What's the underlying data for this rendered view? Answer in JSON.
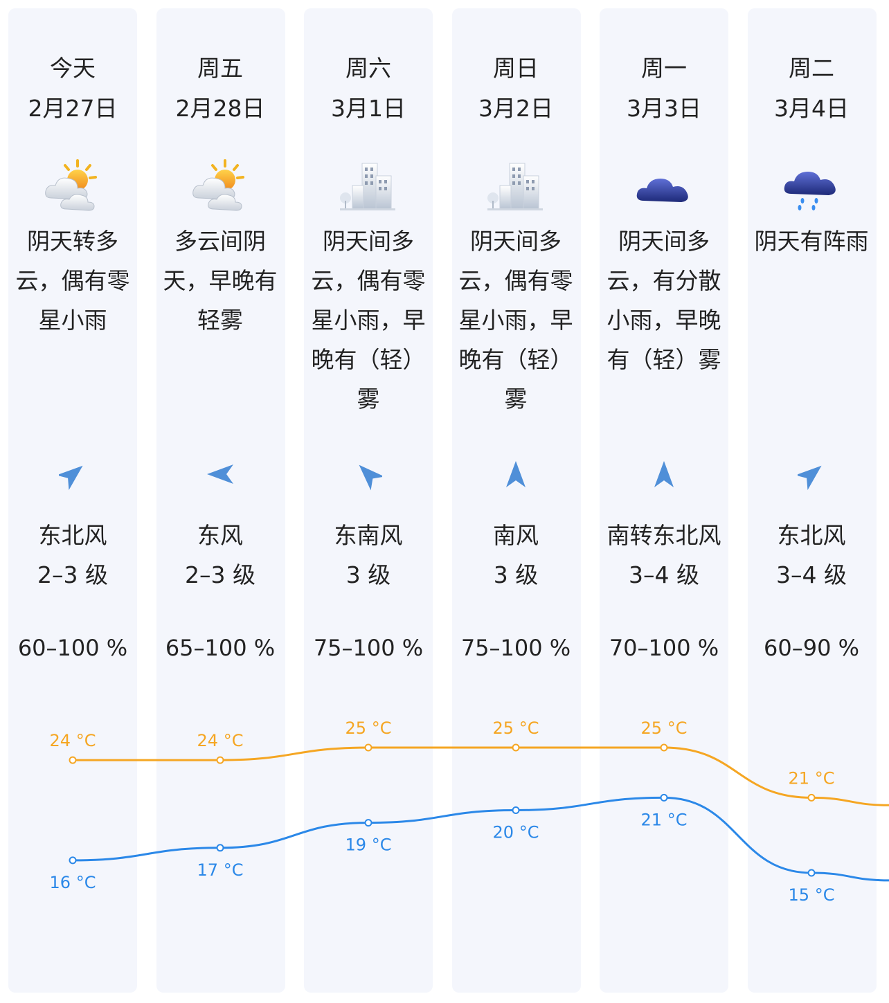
{
  "days": [
    {
      "weekday": "今天",
      "date": "2月27日",
      "icon": "partly-cloudy-sun-icon",
      "desc_lines": [
        "阴天转多",
        "云，偶有零",
        "星小雨"
      ],
      "wind_arrow": "northeast-wind-arrow-icon",
      "wind_dir": "东北风",
      "wind_level": "2–3 级",
      "humidity": "60–100 %",
      "high": "24 °C",
      "low": "16 °C"
    },
    {
      "weekday": "周五",
      "date": "2月28日",
      "icon": "partly-cloudy-sun-icon",
      "desc_lines": [
        "多云间阴",
        "天，早晚有",
        "轻雾"
      ],
      "wind_arrow": "east-wind-arrow-icon",
      "wind_dir": "东风",
      "wind_level": "2–3 级",
      "humidity": "65–100 %",
      "high": "24 °C",
      "low": "17 °C"
    },
    {
      "weekday": "周六",
      "date": "3月1日",
      "icon": "haze-buildings-icon",
      "desc_lines": [
        "阴天间多",
        "云，偶有零",
        "星小雨，早",
        "晚有（轻）",
        "雾"
      ],
      "wind_arrow": "southeast-wind-arrow-icon",
      "wind_dir": "东南风",
      "wind_level": "3 级",
      "humidity": "75–100 %",
      "high": "25 °C",
      "low": "19 °C"
    },
    {
      "weekday": "周日",
      "date": "3月2日",
      "icon": "haze-buildings-icon",
      "desc_lines": [
        "阴天间多",
        "云，偶有零",
        "星小雨，早",
        "晚有（轻）",
        "雾"
      ],
      "wind_arrow": "south-wind-arrow-icon",
      "wind_dir": "南风",
      "wind_level": "3 级",
      "humidity": "75–100 %",
      "high": "25 °C",
      "low": "20 °C"
    },
    {
      "weekday": "周一",
      "date": "3月3日",
      "icon": "overcast-cloud-icon",
      "desc_lines": [
        "阴天间多",
        "云，有分散",
        "小雨，早晚",
        "有（轻）雾"
      ],
      "wind_arrow": "south-wind-arrow-icon",
      "wind_dir": "南转东北风",
      "wind_level": "3–4 级",
      "humidity": "70–100 %",
      "high": "25 °C",
      "low": "21 °C"
    },
    {
      "weekday": "周二",
      "date": "3月4日",
      "icon": "showers-cloud-icon",
      "desc_lines": [
        "阴天有阵雨"
      ],
      "wind_arrow": "northeast-wind-arrow-icon",
      "wind_dir": "东北风",
      "wind_level": "3–4 级",
      "humidity": "60–90 %",
      "high": "21 °C",
      "low": "15 °C"
    }
  ],
  "chart_data": {
    "type": "line",
    "categories": [
      "今天",
      "周五",
      "周六",
      "周日",
      "周一",
      "周二"
    ],
    "series": [
      {
        "values": [
          24,
          24,
          25,
          25,
          25,
          21
        ],
        "color": "#f5a623"
      },
      {
        "values": [
          16,
          17,
          19,
          20,
          21,
          15
        ],
        "color": "#2b88e8"
      }
    ],
    "unit": "°C"
  }
}
